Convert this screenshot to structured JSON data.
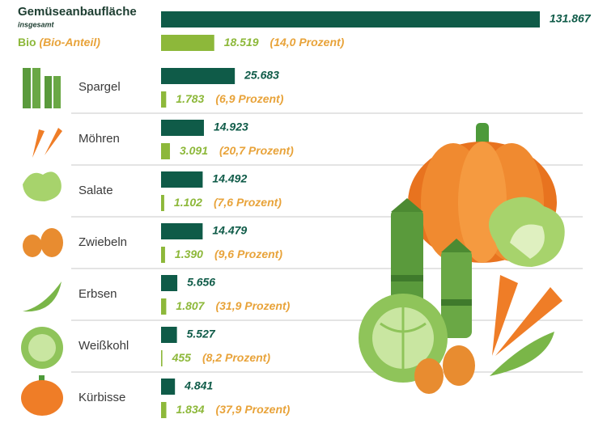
{
  "chart_data": {
    "type": "bar",
    "title": "Gemüseanbaufläche",
    "subtitle": "insgesamt",
    "categories": [
      null,
      "Spargel",
      "Möhren",
      "Salate",
      "Zwiebeln",
      "Erbsen",
      "Weißkohl",
      "Kürbisse"
    ],
    "series": [
      {
        "name": "insgesamt",
        "color": "#0f5b48",
        "values": [
          131867,
          25683,
          14923,
          14492,
          14479,
          5656,
          5527,
          4841
        ],
        "value_labels": [
          "131.867",
          "25.683",
          "14.923",
          "14.492",
          "14.479",
          "5.656",
          "5.527",
          "4.841"
        ]
      },
      {
        "name": "Bio",
        "color": "#8db83a",
        "share_title": "(Bio-Anteil)",
        "share_color": "#e8a33a",
        "values": [
          18519,
          1783,
          3091,
          1102,
          1390,
          1807,
          455,
          1834
        ],
        "value_labels": [
          "18.519",
          "1.783",
          "3.091",
          "1.102",
          "1.390",
          "1.807",
          "455",
          "1.834"
        ],
        "share_labels": [
          "(14,0 Prozent)",
          "(6,9 Prozent)",
          "(20,7 Prozent)",
          "(7,6 Prozent)",
          "(9,6 Prozent)",
          "(31,9 Prozent)",
          "(8,2 Prozent)",
          "(37,9 Prozent)"
        ]
      }
    ]
  }
}
